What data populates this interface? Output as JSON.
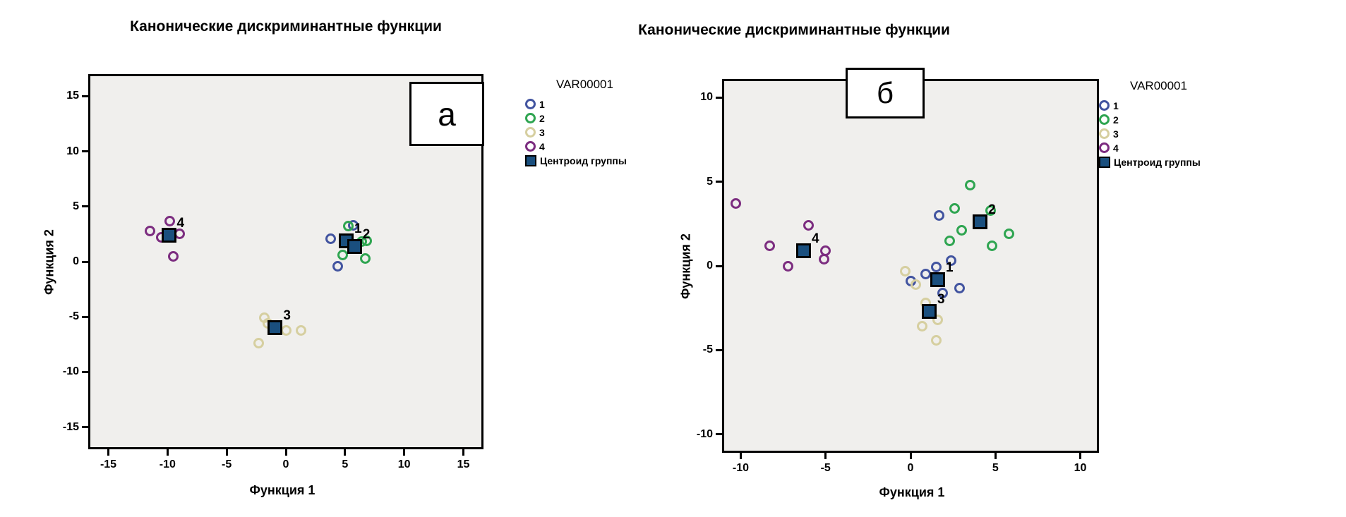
{
  "page": {
    "background": "#ffffff"
  },
  "chart_data": [
    {
      "type": "scatter",
      "title": "Канонические дискриминантные функции",
      "xlabel": "Функция 1",
      "ylabel": "Функция 2",
      "corner_label": "а",
      "plot_background": "#f0efed",
      "grid": false,
      "xlim": [
        -16.7,
        16.7
      ],
      "ylim": [
        -17,
        17
      ],
      "xticks": [
        -15,
        -10,
        -5,
        0,
        5,
        10,
        15
      ],
      "yticks": [
        -15,
        -10,
        -5,
        0,
        5,
        10,
        15
      ],
      "legend": {
        "title": "VAR00001",
        "position": "right",
        "items": [
          {
            "label": "1",
            "color": "#4254a0"
          },
          {
            "label": "2",
            "color": "#2fa551"
          },
          {
            "label": "3",
            "color": "#d6cfa0"
          },
          {
            "label": "4",
            "color": "#7c2d80"
          }
        ],
        "centroid_label": "Центроид группы",
        "centroid_color": "#1a4f7e"
      },
      "series": [
        {
          "name": "1",
          "color": "#4254a0",
          "points": [
            [
              3.8,
              2.1
            ],
            [
              5.7,
              3.3
            ],
            [
              4.4,
              -0.4
            ]
          ]
        },
        {
          "name": "2",
          "color": "#2fa551",
          "points": [
            [
              5.3,
              3.2
            ],
            [
              6.4,
              1.8
            ],
            [
              6.8,
              1.9
            ],
            [
              6.7,
              0.3
            ],
            [
              4.8,
              0.6
            ]
          ]
        },
        {
          "name": "3",
          "color": "#d6cfa0",
          "points": [
            [
              -1.8,
              -5.1
            ],
            [
              -1.5,
              -5.6
            ],
            [
              0.0,
              -6.2
            ],
            [
              1.3,
              -6.2
            ],
            [
              -2.3,
              -7.4
            ]
          ]
        },
        {
          "name": "4",
          "color": "#7c2d80",
          "points": [
            [
              -9.8,
              3.7
            ],
            [
              -11.5,
              2.8
            ],
            [
              -10.5,
              2.2
            ],
            [
              -9.0,
              2.5
            ],
            [
              -9.5,
              0.5
            ]
          ]
        }
      ],
      "centroids": [
        {
          "label": "1",
          "x": 5.1,
          "y": 1.9
        },
        {
          "label": "2",
          "x": 5.8,
          "y": 1.4
        },
        {
          "label": "3",
          "x": -0.9,
          "y": -6.0
        },
        {
          "label": "4",
          "x": -9.9,
          "y": 2.4
        }
      ],
      "centroid_color": "#1a4f7e"
    },
    {
      "type": "scatter",
      "title": "Канонические дискриминантные функции",
      "xlabel": "Функция 1",
      "ylabel": "Функция 2",
      "corner_label": "б",
      "plot_background": "#f0efed",
      "grid": false,
      "xlim": [
        -11.1,
        11.1
      ],
      "ylim": [
        -11.1,
        11.1
      ],
      "xticks": [
        -10,
        -5,
        0,
        5,
        10
      ],
      "yticks": [
        -10,
        -5,
        0,
        5,
        10
      ],
      "legend": {
        "title": "VAR00001",
        "position": "right",
        "items": [
          {
            "label": "1",
            "color": "#4254a0"
          },
          {
            "label": "2",
            "color": "#2fa551"
          },
          {
            "label": "3",
            "color": "#d6cfa0"
          },
          {
            "label": "4",
            "color": "#7c2d80"
          }
        ],
        "centroid_label": "Центроид группы",
        "centroid_color": "#1a4f7e"
      },
      "series": [
        {
          "name": "1",
          "color": "#4254a0",
          "points": [
            [
              0.0,
              -0.9
            ],
            [
              0.9,
              -0.5
            ],
            [
              1.5,
              -0.05
            ],
            [
              2.4,
              0.3
            ],
            [
              2.9,
              -1.3
            ],
            [
              1.9,
              -1.6
            ],
            [
              1.7,
              3.0
            ]
          ]
        },
        {
          "name": "2",
          "color": "#2fa551",
          "points": [
            [
              3.5,
              4.8
            ],
            [
              2.6,
              3.4
            ],
            [
              4.7,
              3.3
            ],
            [
              3.0,
              2.1
            ],
            [
              5.8,
              1.9
            ],
            [
              4.8,
              1.2
            ],
            [
              2.3,
              1.5
            ]
          ]
        },
        {
          "name": "3",
          "color": "#d6cfa0",
          "points": [
            [
              -0.3,
              -0.3
            ],
            [
              0.3,
              -1.1
            ],
            [
              0.9,
              -2.2
            ],
            [
              1.6,
              -3.2
            ],
            [
              0.7,
              -3.6
            ],
            [
              1.5,
              -4.4
            ]
          ]
        },
        {
          "name": "4",
          "color": "#7c2d80",
          "points": [
            [
              -10.3,
              3.7
            ],
            [
              -6.0,
              2.4
            ],
            [
              -8.3,
              1.2
            ],
            [
              -5.0,
              0.9
            ],
            [
              -5.1,
              0.4
            ],
            [
              -7.2,
              0.0
            ]
          ]
        }
      ],
      "centroids": [
        {
          "label": "1",
          "x": 1.6,
          "y": -0.8
        },
        {
          "label": "2",
          "x": 4.1,
          "y": 2.6
        },
        {
          "label": "3",
          "x": 1.1,
          "y": -2.7
        },
        {
          "label": "4",
          "x": -6.3,
          "y": 0.9
        }
      ],
      "centroid_color": "#1a4f7e"
    }
  ]
}
